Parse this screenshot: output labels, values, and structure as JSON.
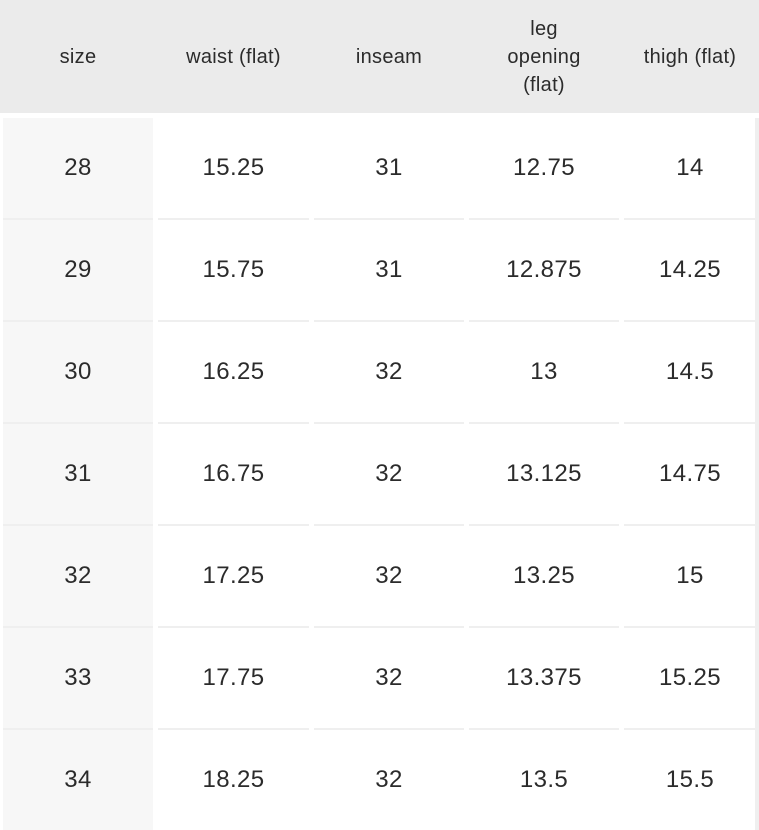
{
  "chart_data": {
    "type": "table",
    "columns": [
      "size",
      "waist (flat)",
      "inseam",
      "leg opening (flat)",
      "thigh (flat)"
    ],
    "rows": [
      [
        "28",
        "15.25",
        "31",
        "12.75",
        "14"
      ],
      [
        "29",
        "15.75",
        "31",
        "12.875",
        "14.25"
      ],
      [
        "30",
        "16.25",
        "32",
        "13",
        "14.5"
      ],
      [
        "31",
        "16.75",
        "32",
        "13.125",
        "14.75"
      ],
      [
        "32",
        "17.25",
        "32",
        "13.25",
        "15"
      ],
      [
        "33",
        "17.75",
        "32",
        "13.375",
        "15.25"
      ],
      [
        "34",
        "18.25",
        "32",
        "13.5",
        "15.5"
      ]
    ],
    "layout_hints": {
      "header_position": "top",
      "row_key_column": "size",
      "grid": "light horizontal dividers, white vertical gutters"
    }
  },
  "colors": {
    "header_bg": "#ebebeb",
    "size_column_bg": "#f7f7f7",
    "cell_bg": "#ffffff",
    "row_divider": "#efefef",
    "text": "#2b2b2b"
  }
}
